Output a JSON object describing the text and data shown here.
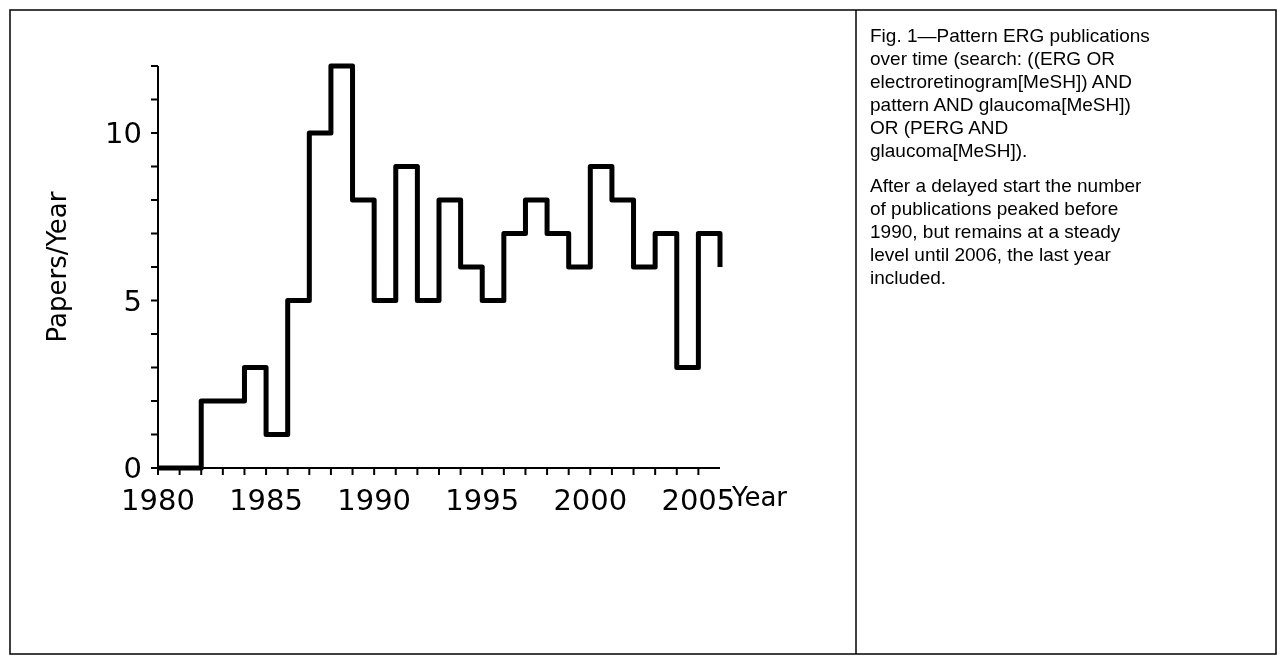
{
  "chart_data": {
    "type": "step",
    "xlabel": "Year",
    "ylabel": "Papers/Year",
    "x": [
      1980,
      1981,
      1982,
      1983,
      1984,
      1985,
      1986,
      1987,
      1988,
      1989,
      1990,
      1991,
      1992,
      1993,
      1994,
      1995,
      1996,
      1997,
      1998,
      1999,
      2000,
      2001,
      2002,
      2003,
      2004,
      2005,
      2006
    ],
    "series": [
      {
        "color": "#000000",
        "values": [
          0,
          0,
          2,
          2,
          3,
          1,
          5,
          10,
          12,
          8,
          5,
          9,
          5,
          8,
          6,
          5,
          7,
          8,
          7,
          6,
          9,
          8,
          6,
          7,
          3,
          7,
          6
        ]
      }
    ],
    "xlim": [
      1980,
      2006
    ],
    "xticks": [
      1980,
      {
        "value": 1981,
        "label": null
      },
      {
        "value": 1982,
        "label": null
      },
      {
        "value": 1983,
        "label": null
      },
      {
        "value": 1984,
        "label": null
      },
      1985,
      {
        "value": 1986,
        "label": null
      },
      {
        "value": 1987,
        "label": null
      },
      {
        "value": 1988,
        "label": null
      },
      {
        "value": 1989,
        "label": null
      },
      1990,
      {
        "value": 1991,
        "label": null
      },
      {
        "value": 1992,
        "label": null
      },
      {
        "value": 1993,
        "label": null
      },
      {
        "value": 1994,
        "label": null
      },
      1995,
      {
        "value": 1996,
        "label": null
      },
      {
        "value": 1997,
        "label": null
      },
      {
        "value": 1998,
        "label": null
      },
      {
        "value": 1999,
        "label": null
      },
      2000,
      {
        "value": 2001,
        "label": null
      },
      {
        "value": 2002,
        "label": null
      },
      {
        "value": 2003,
        "label": null
      },
      {
        "value": 2004,
        "label": null
      },
      2005
    ],
    "ylim": [
      0,
      12
    ],
    "yticks": [
      0,
      {
        "value": 1,
        "label": null
      },
      {
        "value": 2,
        "label": null
      },
      {
        "value": 3,
        "label": null
      },
      {
        "value": 4,
        "label": null
      },
      5,
      {
        "value": 6,
        "label": null
      },
      {
        "value": 7,
        "label": null
      },
      {
        "value": 8,
        "label": null
      },
      {
        "value": 9,
        "label": null
      },
      10,
      {
        "value": 11,
        "label": null
      },
      {
        "value": 12,
        "label": null
      }
    ],
    "grid": false,
    "line_style": "solid",
    "marker": "none",
    "annotations": [
      "Fig. 1—Pattern ERG publications over time (search: ((ERG OR electroretinogram[MeSH]) AND pattern AND glaucoma[MeSH]) OR (PERG AND glaucoma[MeSH]).",
      "After a delayed start the number of publications peaked before 1990, but remains at a steady level until 2006, the last year included."
    ]
  }
}
